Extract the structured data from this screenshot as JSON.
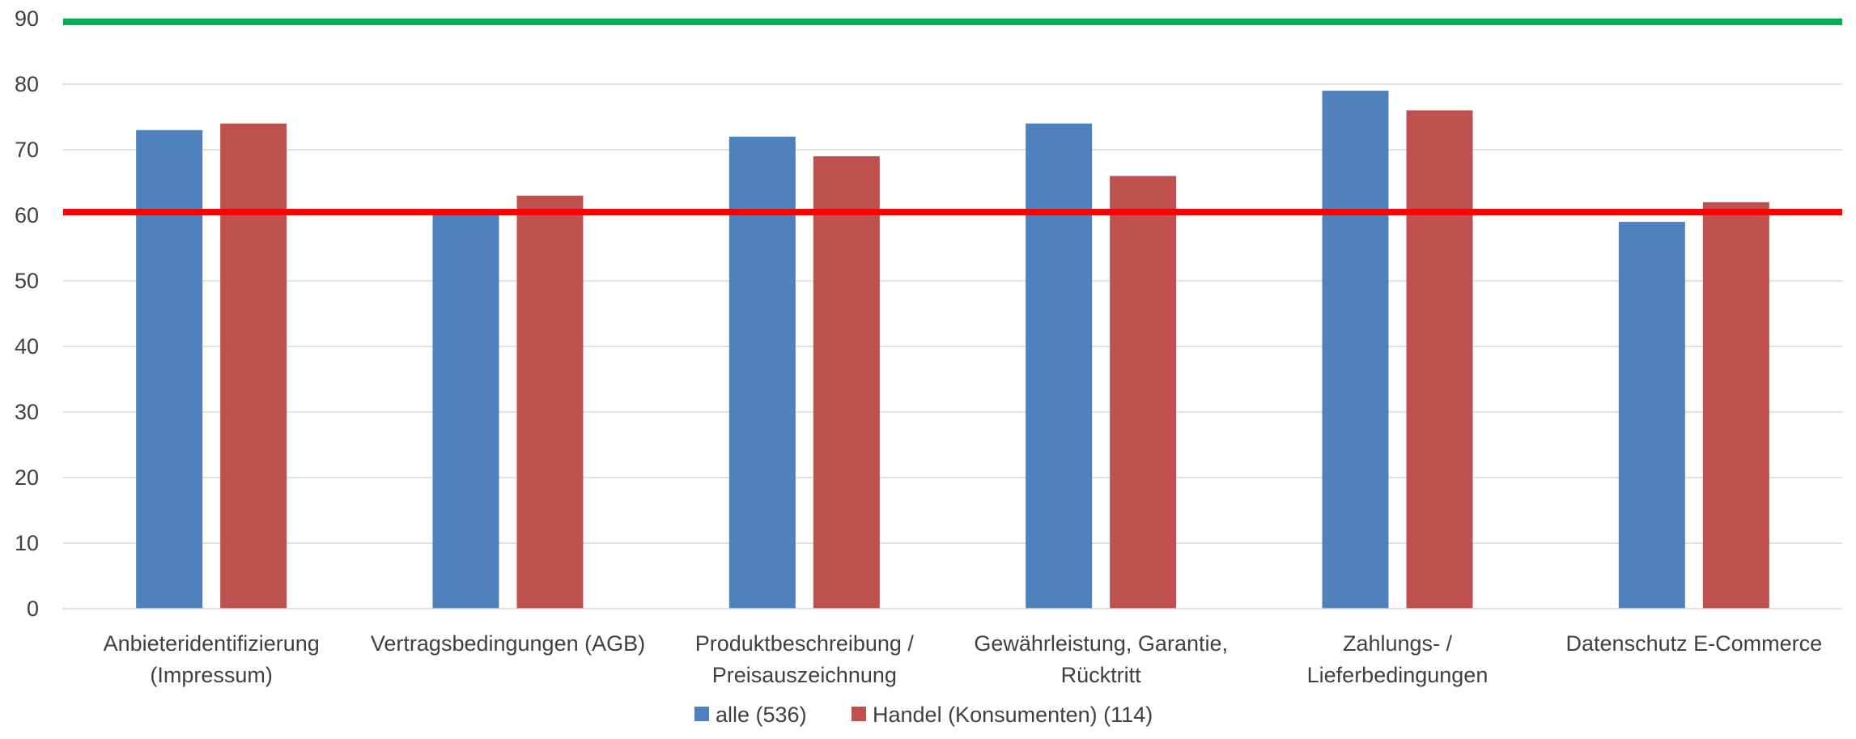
{
  "chart_data": {
    "type": "bar",
    "categories": [
      [
        "Anbieteridentifizierung",
        "(Impressum)"
      ],
      [
        "Vertragsbedingungen (AGB)"
      ],
      [
        "Produktbeschreibung /",
        "Preisauszeichnung"
      ],
      [
        "Gewährleistung, Garantie,",
        "Rücktritt"
      ],
      [
        "Zahlungs- /",
        "Lieferbedingungen"
      ],
      [
        "Datenschutz E-Commerce"
      ]
    ],
    "series": [
      {
        "name": "alle (536)",
        "values": [
          73,
          60,
          72,
          74,
          79,
          59
        ],
        "color": "#4F81BD"
      },
      {
        "name": "Handel (Konsumenten) (114)",
        "values": [
          74,
          63,
          69,
          66,
          76,
          62
        ],
        "color": "#C0504D"
      }
    ],
    "reference_lines": [
      {
        "value": 89.5,
        "color": "#00B050"
      },
      {
        "value": 60.5,
        "color": "#FF0000"
      }
    ],
    "ylim": [
      0,
      90
    ],
    "yticks": [
      0,
      10,
      20,
      30,
      40,
      50,
      60,
      70,
      80,
      90
    ],
    "grid": true,
    "legend": "bottom"
  }
}
